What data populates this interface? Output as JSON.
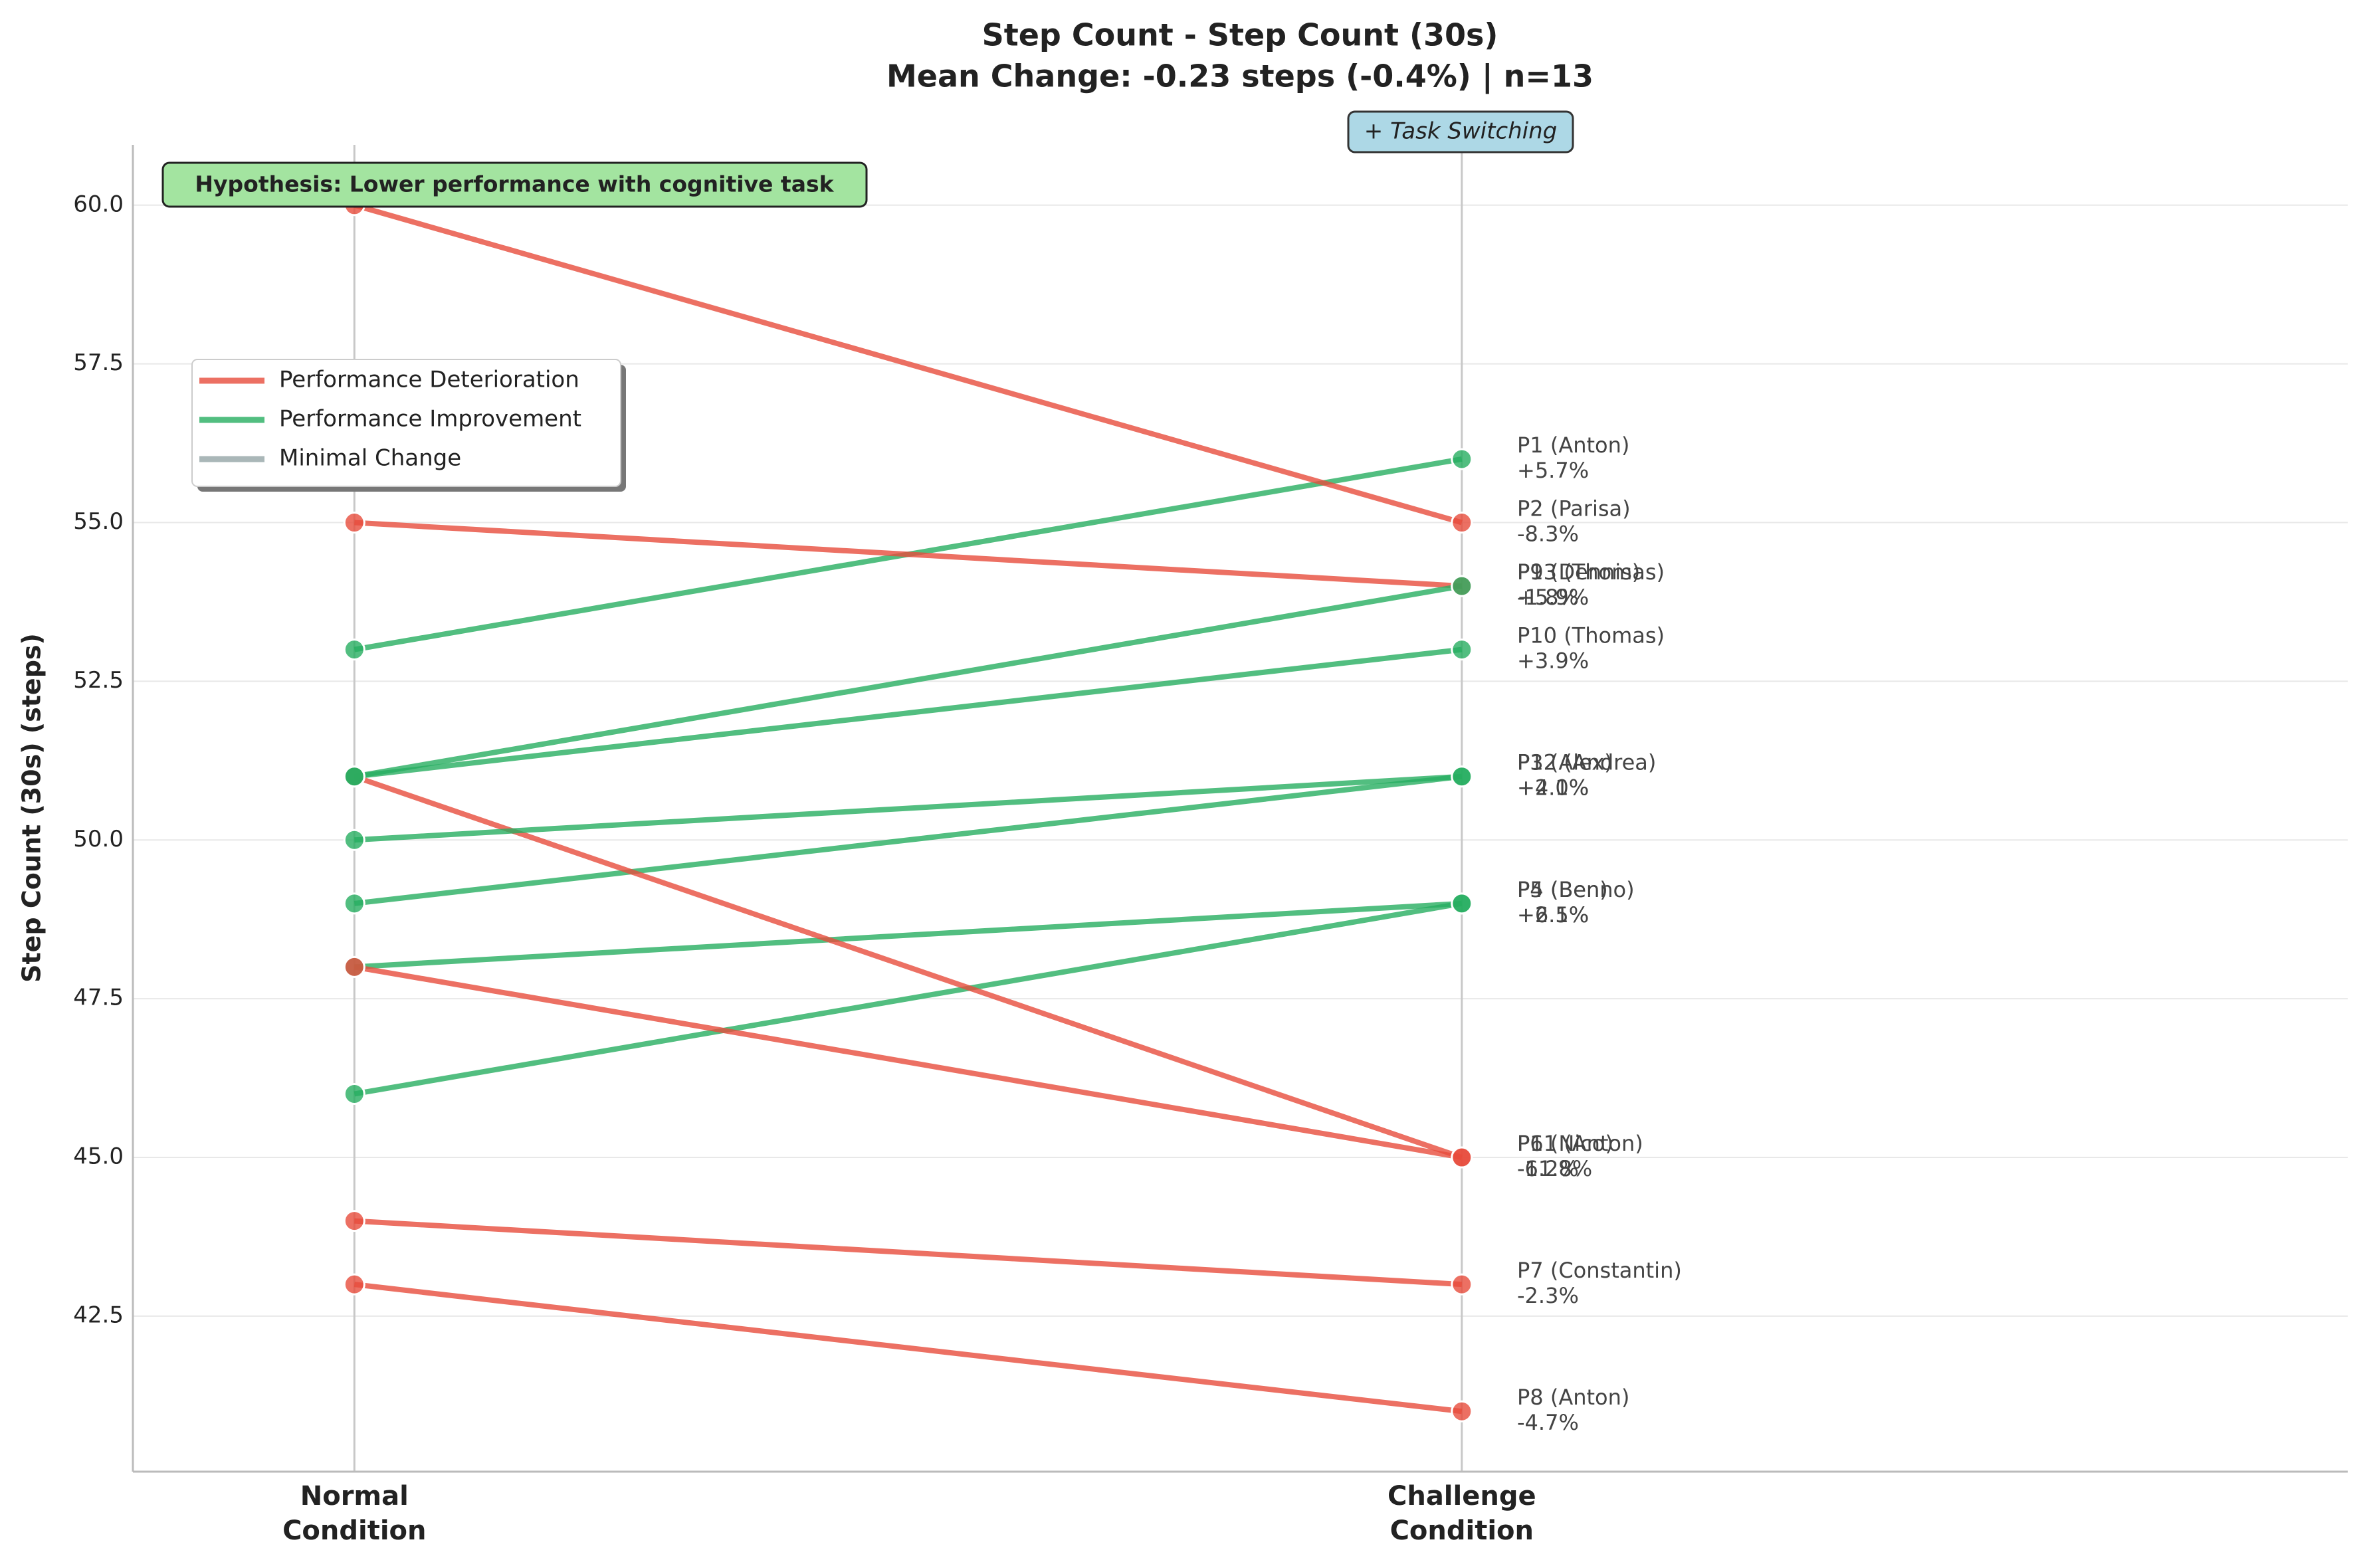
{
  "chart_data": {
    "type": "slope",
    "title": "Step Count - Step Count (30s)",
    "subtitle": "Mean Change: -0.23 steps (-0.4%) | n=13",
    "y_label": "Step Count (30s) (steps)",
    "categories": [
      "Normal\nCondition",
      "Challenge\nCondition"
    ],
    "xlim": [
      -0.2,
      1.8
    ],
    "ylim": [
      40.05,
      60.95
    ],
    "yticks": [
      42.5,
      45.0,
      47.5,
      50.0,
      52.5,
      55.0,
      57.5,
      60.0
    ],
    "ytick_labels": [
      "42.5",
      "45.0",
      "47.5",
      "50.0",
      "52.5",
      "55.0",
      "57.5",
      "60.0"
    ],
    "grid": true,
    "annotations": {
      "hypothesis": "Hypothesis: Lower performance with cognitive task",
      "condition": "+ Task Switching"
    },
    "legend": [
      {
        "name": "Performance Deterioration",
        "color": "#e74c3c"
      },
      {
        "name": "Performance Improvement",
        "color": "#27ae60"
      },
      {
        "name": "Minimal Change",
        "color": "#95a5a6"
      }
    ],
    "series": [
      {
        "name": "P1 (Anton)",
        "color": "#27ae60",
        "values": [
          53,
          56
        ],
        "change": "+5.7%"
      },
      {
        "name": "P2 (Parisa)",
        "color": "#e74c3c",
        "values": [
          60,
          55
        ],
        "change": "-8.3%"
      },
      {
        "name": "P3 (Alex)",
        "color": "#27ae60",
        "values": [
          49,
          51
        ],
        "change": "+4.1%"
      },
      {
        "name": "P4 (Ben)",
        "color": "#27ae60",
        "values": [
          48,
          49
        ],
        "change": "+2.1%"
      },
      {
        "name": "P5 (Benno)",
        "color": "#27ae60",
        "values": [
          46,
          49
        ],
        "change": "+6.5%"
      },
      {
        "name": "P6 (Nico)",
        "color": "#e74c3c",
        "values": [
          51,
          45
        ],
        "change": "-11.8%"
      },
      {
        "name": "P7 (Constantin)",
        "color": "#e74c3c",
        "values": [
          44,
          43
        ],
        "change": "-2.3%"
      },
      {
        "name": "P8 (Anton)",
        "color": "#e74c3c",
        "values": [
          43,
          41
        ],
        "change": "-4.7%"
      },
      {
        "name": "P9 (Dennis)",
        "color": "#e74c3c",
        "values": [
          55,
          54
        ],
        "change": "-1.8%"
      },
      {
        "name": "P10 (Thomas)",
        "color": "#27ae60",
        "values": [
          51,
          53
        ],
        "change": "+3.9%"
      },
      {
        "name": "P11 (Anton)",
        "color": "#e74c3c",
        "values": [
          48,
          45
        ],
        "change": "-6.2%"
      },
      {
        "name": "P12 (Andrea)",
        "color": "#27ae60",
        "values": [
          50,
          51
        ],
        "change": "+2.0%"
      },
      {
        "name": "P13 (Thomas)",
        "color": "#27ae60",
        "values": [
          51,
          54
        ],
        "change": "+5.9%"
      }
    ]
  }
}
